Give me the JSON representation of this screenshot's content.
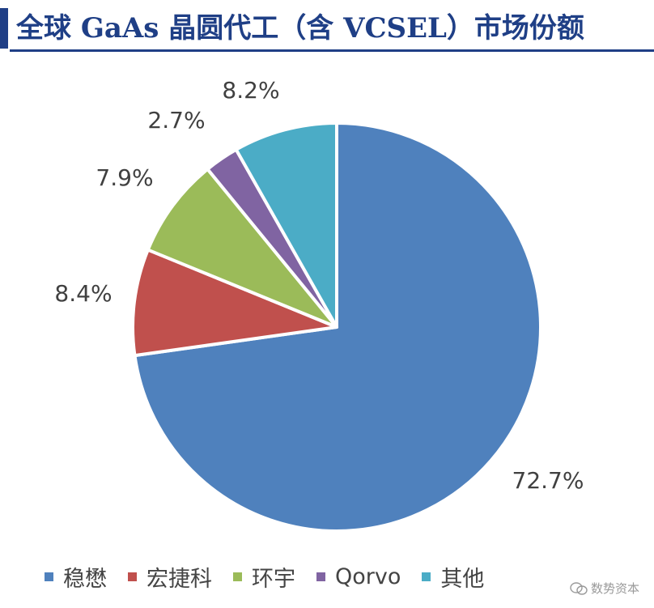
{
  "title": "全球 GaAs 晶圆代工（含 VCSEL）市场份额",
  "chart_data": {
    "type": "pie",
    "slices": [
      {
        "label": "稳懋",
        "value": 72.7,
        "display": "72.7%",
        "color": "#4f81bd"
      },
      {
        "label": "宏捷科",
        "value": 8.4,
        "display": "8.4%",
        "color": "#c0504d"
      },
      {
        "label": "环宇",
        "value": 7.9,
        "display": "7.9%",
        "color": "#9bbb59"
      },
      {
        "label": "Qorvo",
        "value": 2.7,
        "display": "2.7%",
        "color": "#8064a2"
      },
      {
        "label": "其他",
        "value": 8.2,
        "display": "8.2%",
        "color": "#4bacc6"
      }
    ],
    "start_angle": "12 o'clock",
    "direction": "clockwise",
    "legend_position": "bottom"
  },
  "watermark": "数势资本"
}
